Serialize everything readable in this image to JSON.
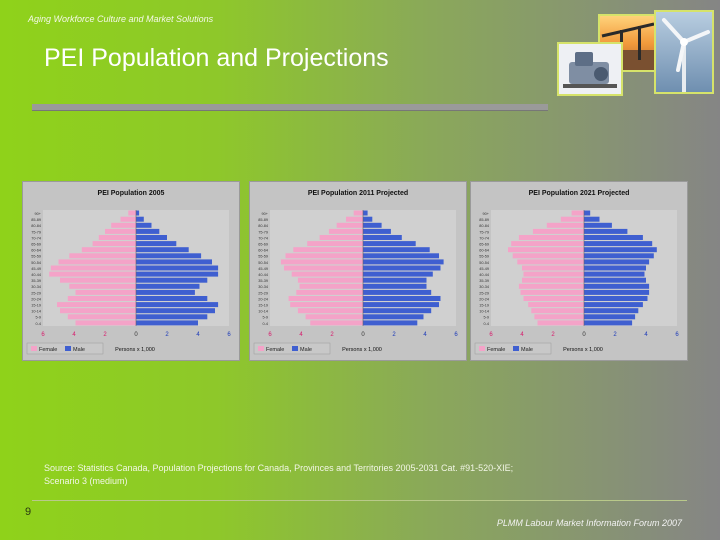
{
  "slide": {
    "header": "Aging Workforce Culture and Market Solutions",
    "title": "PEI Population and Projections",
    "source_line1": "Source: Statistics Canada, Population Projections for Canada, Provinces and Territories 2005-2031 Cat. #91-520-XIE;",
    "source_line2": "Scenario 3 (medium)",
    "page_number": "9",
    "footer": "PLMM Labour Market Information Forum 2007"
  },
  "colors": {
    "female": "#f4a3c8",
    "male": "#3f5fd0",
    "panel": "#c4c4c4"
  },
  "chart_data": [
    {
      "type": "bar",
      "orientation": "horizontal",
      "title": "PEI Population 2005",
      "age_groups": [
        "0-4",
        "5-9",
        "10-14",
        "15-19",
        "20-24",
        "25-29",
        "30-34",
        "35-39",
        "40-44",
        "45-49",
        "50-54",
        "55-59",
        "60-64",
        "65-69",
        "70-74",
        "75-79",
        "80-84",
        "85-89",
        "90+"
      ],
      "series": [
        {
          "name": "Female",
          "values": [
            -3.9,
            -4.4,
            -4.9,
            -5.1,
            -4.4,
            -3.9,
            -4.3,
            -4.9,
            -5.6,
            -5.5,
            -5.0,
            -4.3,
            -3.5,
            -2.8,
            -2.4,
            -2.0,
            -1.6,
            -1.0,
            -0.5
          ]
        },
        {
          "name": "Male",
          "values": [
            4.0,
            4.6,
            5.1,
            5.3,
            4.6,
            3.8,
            4.1,
            4.6,
            5.3,
            5.3,
            4.9,
            4.2,
            3.4,
            2.6,
            2.0,
            1.5,
            1.0,
            0.5,
            0.2
          ]
        }
      ],
      "xticks": [
        "6",
        "4",
        "2",
        "0",
        "2",
        "4",
        "6"
      ],
      "xlabel": "Persons x 1,000",
      "xlim": [
        -6,
        6
      ],
      "legend": [
        "Female",
        "Male"
      ]
    },
    {
      "type": "bar",
      "orientation": "horizontal",
      "title": "PEI Population 2011 Projected",
      "age_groups": [
        "0-4",
        "5-9",
        "10-14",
        "15-19",
        "20-24",
        "25-29",
        "30-34",
        "35-39",
        "40-44",
        "45-49",
        "50-54",
        "55-59",
        "60-64",
        "65-69",
        "70-74",
        "75-79",
        "80-84",
        "85-89",
        "90+"
      ],
      "series": [
        {
          "name": "Female",
          "values": [
            -3.4,
            -3.7,
            -4.2,
            -4.7,
            -4.8,
            -4.3,
            -4.1,
            -4.2,
            -4.6,
            -5.1,
            -5.3,
            -5.0,
            -4.5,
            -3.6,
            -2.8,
            -2.2,
            -1.7,
            -1.1,
            -0.6
          ]
        },
        {
          "name": "Male",
          "values": [
            3.5,
            3.9,
            4.4,
            4.9,
            5.0,
            4.4,
            4.1,
            4.1,
            4.5,
            5.0,
            5.2,
            4.9,
            4.3,
            3.4,
            2.5,
            1.8,
            1.2,
            0.6,
            0.3
          ]
        }
      ],
      "xticks": [
        "6",
        "4",
        "2",
        "0",
        "2",
        "4",
        "6"
      ],
      "xlabel": "Persons x 1,000",
      "xlim": [
        -6,
        6
      ],
      "legend": [
        "Female",
        "Male"
      ]
    },
    {
      "type": "bar",
      "orientation": "horizontal",
      "title": "PEI Population 2021 Projected",
      "age_groups": [
        "0-4",
        "5-9",
        "10-14",
        "15-19",
        "20-24",
        "25-29",
        "30-34",
        "35-39",
        "40-44",
        "45-49",
        "50-54",
        "55-59",
        "60-64",
        "65-69",
        "70-74",
        "75-79",
        "80-84",
        "85-89",
        "90+"
      ],
      "series": [
        {
          "name": "Female",
          "values": [
            -3.0,
            -3.2,
            -3.4,
            -3.6,
            -3.9,
            -4.1,
            -4.2,
            -4.0,
            -3.9,
            -4.0,
            -4.3,
            -4.6,
            -4.9,
            -4.7,
            -4.2,
            -3.3,
            -2.4,
            -1.5,
            -0.8
          ]
        },
        {
          "name": "Male",
          "values": [
            3.1,
            3.3,
            3.5,
            3.8,
            4.1,
            4.2,
            4.2,
            4.0,
            3.9,
            4.0,
            4.2,
            4.5,
            4.7,
            4.4,
            3.8,
            2.8,
            1.8,
            1.0,
            0.4
          ]
        }
      ],
      "xticks": [
        "6",
        "4",
        "2",
        "0",
        "2",
        "4",
        "6"
      ],
      "xlabel": "Persons x 1,000",
      "xlim": [
        -6,
        6
      ],
      "legend": [
        "Female",
        "Male"
      ]
    }
  ]
}
